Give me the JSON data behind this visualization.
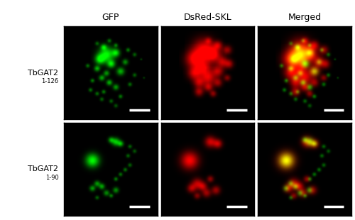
{
  "col_titles": [
    "GFP",
    "DsRed-SKL",
    "Merged"
  ],
  "row_labels": [
    "TbGAT2",
    "TbGAT2"
  ],
  "row_subscripts": [
    "1-126",
    "1-90"
  ],
  "fig_width": 5.0,
  "fig_height": 3.1,
  "background_color": "#ffffff",
  "panel_bg": "#000000",
  "col_title_fontsize": 9,
  "row_label_fontsize": 8,
  "row_subscript_fontsize": 6,
  "scale_bar_color": "#ffffff",
  "border_color": "#000000"
}
